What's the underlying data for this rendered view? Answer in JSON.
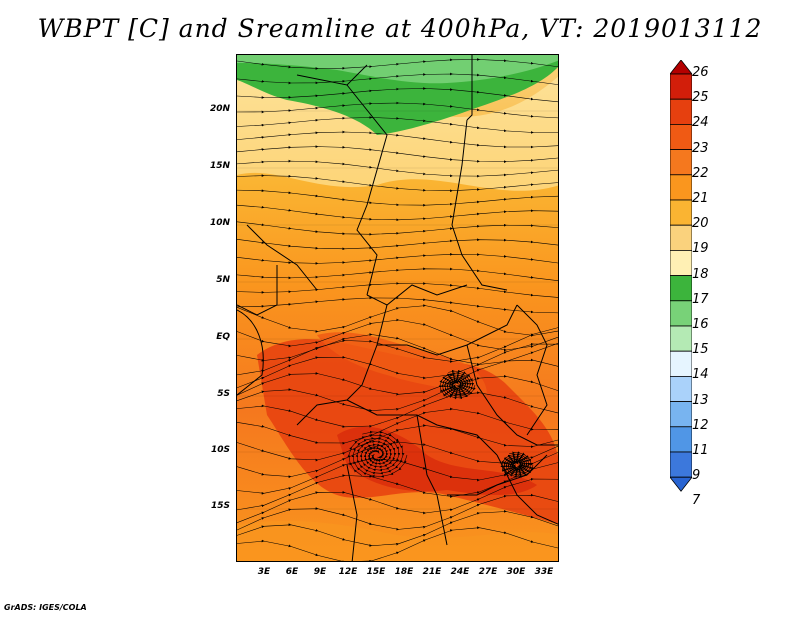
{
  "title": "WBPT [C] and Sreamline at 400hPa, VT: 2019013112",
  "credit": "GrADS: IGES/COLA",
  "map": {
    "variable": "WBPT",
    "units": "C",
    "level": "400hPa",
    "valid_time": "2019013112",
    "lat_labels": [
      "20N",
      "15N",
      "10N",
      "5N",
      "EQ",
      "5S",
      "10S",
      "15S"
    ],
    "lon_labels": [
      "3E",
      "6E",
      "9E",
      "12E",
      "15E",
      "18E",
      "21E",
      "24E",
      "27E",
      "30E",
      "33E"
    ],
    "lat_range": [
      -19,
      24
    ],
    "lon_range": [
      0,
      35
    ]
  },
  "colorbar": {
    "labels": [
      "26",
      "25",
      "24",
      "23",
      "22",
      "21",
      "20",
      "19",
      "18",
      "17",
      "16",
      "15",
      "14",
      "13",
      "12",
      "11",
      "9",
      "7"
    ],
    "colors": [
      "#b40000",
      "#d21e0a",
      "#e6400f",
      "#f05a14",
      "#f5781e",
      "#fa961e",
      "#fab432",
      "#fad27d",
      "#fff0b4",
      "#3cb43c",
      "#78d278",
      "#b4eab4",
      "#e6f5ff",
      "#aad2fa",
      "#78b4f0",
      "#5096e6",
      "#3c78dc",
      "#2864d2"
    ]
  }
}
